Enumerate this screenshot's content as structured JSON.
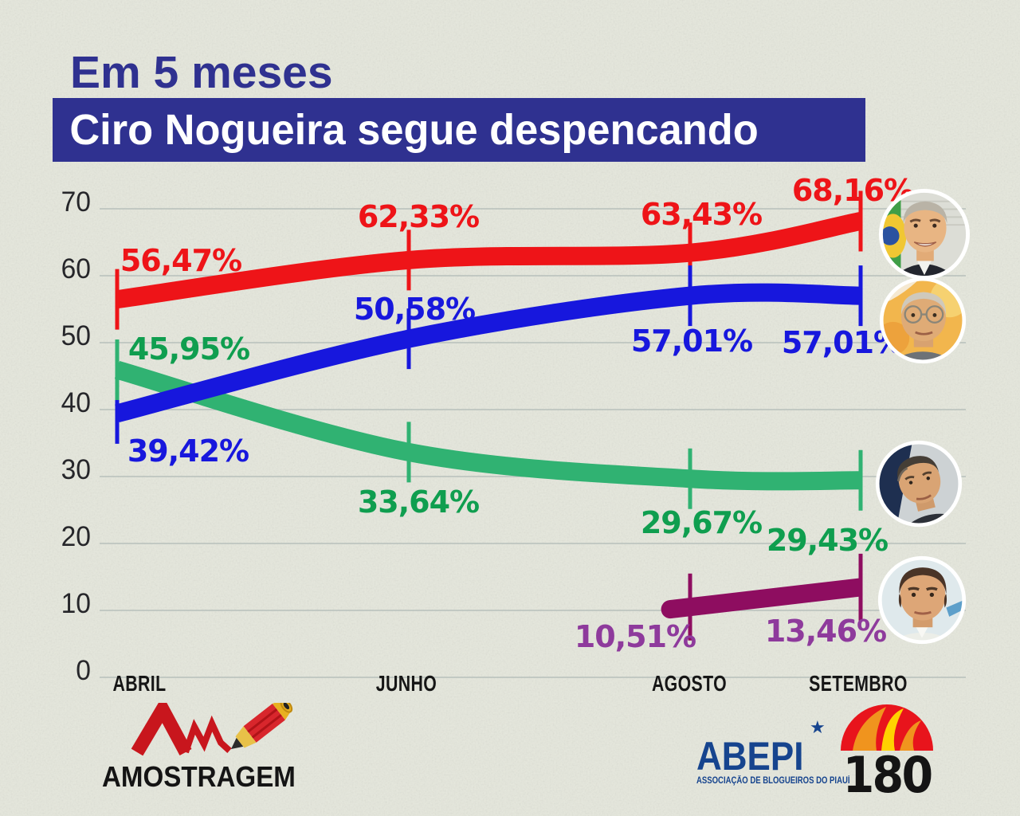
{
  "title": {
    "kicker": "Em 5 meses",
    "headline": "Ciro Nogueira segue despencando"
  },
  "colors": {
    "background": "#e5e7dc",
    "banner": "#2f3190",
    "gridline": "#b7c0bb",
    "axis_text": "#1c1c1c"
  },
  "chart_data": {
    "type": "line",
    "title": "Em 5 meses Ciro Nogueira segue despencando",
    "categories": [
      "ABRIL",
      "JUNHO",
      "AGOSTO",
      "SETEMBRO"
    ],
    "y_ticks": [
      "0",
      "10",
      "20",
      "30",
      "40",
      "50",
      "60",
      "70"
    ],
    "ylim": [
      0,
      70
    ],
    "grid": true,
    "legend_position": "none",
    "series": [
      {
        "id": "red-line",
        "color": "#ee1418",
        "label_color": "#ee1418",
        "values": [
          56.47,
          62.33,
          63.43,
          68.16
        ],
        "point_labels": [
          "56,47%",
          "62,33%",
          "63,43%",
          "68,16%"
        ]
      },
      {
        "id": "blue-line",
        "color": "#1717dd",
        "label_color": "#1717dd",
        "values": [
          39.42,
          50.58,
          57.01,
          57.01
        ],
        "point_labels": [
          "39,42%",
          "50,58%",
          "57,01%",
          "57,01%"
        ]
      },
      {
        "id": "green-line",
        "color": "#30b272",
        "label_color": "#0f9e4f",
        "values": [
          45.95,
          33.64,
          29.67,
          29.43
        ],
        "point_labels": [
          "45,95%",
          "33,64%",
          "29,67%",
          "29,43%"
        ]
      },
      {
        "id": "purple-line",
        "color": "#8e0d60",
        "label_color": "#8e3a9c",
        "values": [
          null,
          null,
          10.51,
          13.46
        ],
        "point_labels": [
          null,
          null,
          "10,51%",
          "13,46%"
        ]
      }
    ]
  },
  "footer": {
    "amostragem_label": "AMOSTRAGEM",
    "abepi_label": "ABEPI",
    "abepi_star": "★",
    "abepi_subtitle": "ASSOCIAÇÃO DE BLOGUEIROS DO PIAUÍ",
    "badge_180": "180"
  }
}
